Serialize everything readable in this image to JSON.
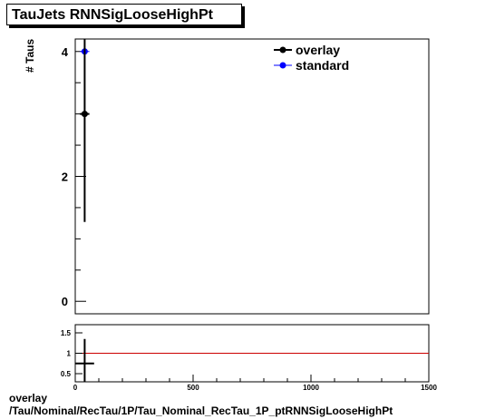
{
  "title": "TauJets RNNSigLooseHighPt",
  "footer": {
    "line1": "overlay",
    "line2": "/Tau/Nominal/RecTau/1P/Tau_Nominal_RecTau_1P_ptRNNSigLooseHighPt"
  },
  "chart_data": [
    {
      "type": "scatter",
      "title": "TauJets RNNSigLooseHighPt",
      "xlabel": "",
      "ylabel": "# Taus",
      "xlim": [
        0,
        1500
      ],
      "ylim": [
        -0.2,
        4.2
      ],
      "y_ticks": [
        0,
        2,
        4
      ],
      "grid": false,
      "legend_position": "top-right",
      "series": [
        {
          "name": "overlay",
          "color": "#000000",
          "points": [
            {
              "x": 40,
              "y": 3,
              "yerr": 1.73,
              "xerr": 20
            }
          ]
        },
        {
          "name": "standard",
          "color": "#0000ff",
          "points": [
            {
              "x": 40,
              "y": 4,
              "yerr": 2.0,
              "xerr": 20
            }
          ]
        }
      ]
    },
    {
      "type": "scatter",
      "title": "",
      "xlabel": "",
      "ylabel": "",
      "xlim": [
        0,
        1500
      ],
      "ylim": [
        0.3,
        1.7
      ],
      "x_ticks": [
        0,
        500,
        1000,
        1500
      ],
      "y_ticks": [
        0.5,
        1,
        1.5
      ],
      "reference_line": {
        "y": 1,
        "color": "#cc0000"
      },
      "series": [
        {
          "color": "#000000",
          "points": [
            {
              "x": 40,
              "y": 0.75,
              "yerr": 0.6,
              "xerr": 40
            }
          ]
        }
      ]
    }
  ]
}
